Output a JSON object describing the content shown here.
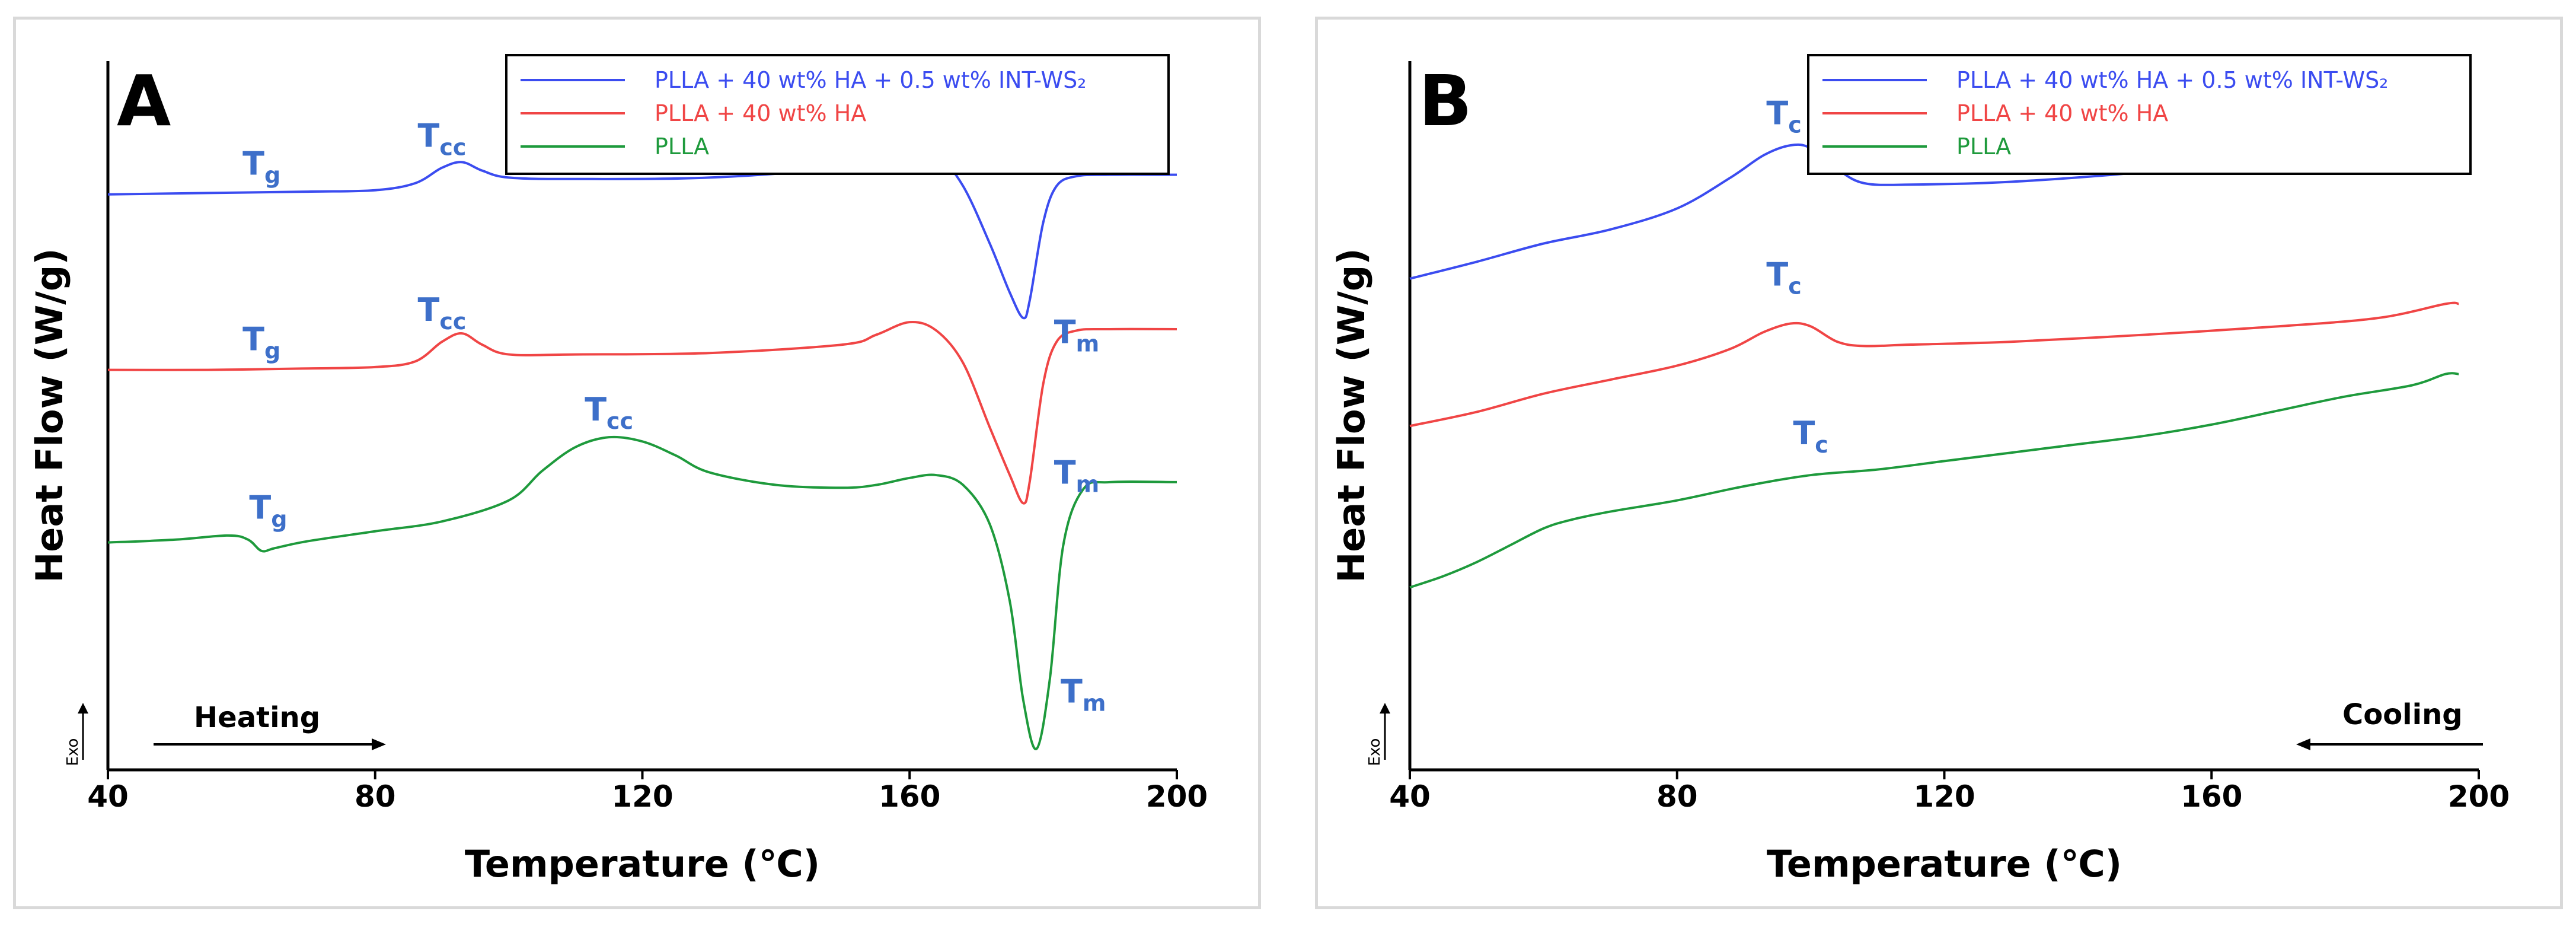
{
  "chart_data": [
    {
      "type": "line",
      "panel_label": "A",
      "xlabel": "Temperature (℃)",
      "ylabel": "Heat Flow (W/g)",
      "xlim": [
        40,
        200
      ],
      "x_ticks": [
        "40",
        "80",
        "120",
        "160",
        "200"
      ],
      "y_ticks": "none",
      "grid": false,
      "legend_position": "top-right",
      "exo_label": "Exo",
      "direction_label": "Heating",
      "direction": "right",
      "series": [
        {
          "name": "PLLA + 40 wt% HA + 0.5 wt% INT-WS₂",
          "color": "#3b4cf0",
          "x": [
            40,
            55,
            70,
            80,
            86,
            90,
            93,
            96,
            100,
            110,
            130,
            150,
            155,
            160,
            164,
            168,
            172,
            175,
            177,
            178,
            180,
            182,
            185,
            190,
            200
          ],
          "y": [
            0.8,
            0.81,
            0.82,
            0.83,
            0.88,
            0.99,
            1.03,
            0.97,
            0.92,
            0.91,
            0.92,
            0.99,
            1.07,
            1.14,
            1.09,
            0.86,
            0.45,
            0.1,
            -0.08,
            0.05,
            0.6,
            0.86,
            0.93,
            0.94,
            0.94
          ]
        },
        {
          "name": "PLLA + 40 wt% HA",
          "color": "#f04545",
          "x": [
            40,
            55,
            70,
            80,
            86,
            90,
            93,
            96,
            100,
            110,
            130,
            150,
            155,
            160,
            164,
            168,
            172,
            175,
            177,
            178,
            180,
            182,
            185,
            190,
            200
          ],
          "y": [
            -0.45,
            -0.45,
            -0.44,
            -0.43,
            -0.39,
            -0.25,
            -0.19,
            -0.27,
            -0.34,
            -0.34,
            -0.33,
            -0.27,
            -0.2,
            -0.11,
            -0.17,
            -0.4,
            -0.86,
            -1.2,
            -1.4,
            -1.24,
            -0.55,
            -0.25,
            -0.17,
            -0.16,
            -0.16
          ]
        },
        {
          "name": "PLLA",
          "color": "#1e9a3c",
          "x": [
            40,
            50,
            58,
            61,
            63,
            65,
            70,
            80,
            90,
            100,
            105,
            110,
            115,
            120,
            125,
            130,
            140,
            150,
            155,
            160,
            164,
            168,
            172,
            175,
            177,
            179,
            181,
            183,
            186,
            190,
            200
          ],
          "y": [
            -1.68,
            -1.66,
            -1.63,
            -1.66,
            -1.74,
            -1.72,
            -1.67,
            -1.6,
            -1.53,
            -1.38,
            -1.17,
            -1.0,
            -0.93,
            -0.96,
            -1.06,
            -1.18,
            -1.27,
            -1.29,
            -1.27,
            -1.22,
            -1.2,
            -1.27,
            -1.55,
            -2.1,
            -2.8,
            -3.15,
            -2.65,
            -1.7,
            -1.3,
            -1.25,
            -1.25
          ]
        }
      ],
      "annotations": [
        {
          "main": "T",
          "sub": "g",
          "x": 63,
          "y": 0.94
        },
        {
          "main": "T",
          "sub": "cc",
          "x": 90,
          "y": 1.14
        },
        {
          "main": "T",
          "sub": "m",
          "x": 185,
          "y": -0.26
        },
        {
          "main": "T",
          "sub": "g",
          "x": 63,
          "y": -0.31
        },
        {
          "main": "T",
          "sub": "cc",
          "x": 90,
          "y": -0.1
        },
        {
          "main": "T",
          "sub": "m",
          "x": 185,
          "y": -1.26
        },
        {
          "main": "T",
          "sub": "g",
          "x": 64,
          "y": -1.51
        },
        {
          "main": "T",
          "sub": "cc",
          "x": 115,
          "y": -0.81
        },
        {
          "main": "T",
          "sub": "m",
          "x": 186,
          "y": -2.82
        }
      ]
    },
    {
      "type": "line",
      "panel_label": "B",
      "xlabel": "Temperature (℃)",
      "ylabel": "Heat Flow (W/g)",
      "xlim": [
        40,
        200
      ],
      "x_ticks": [
        "40",
        "80",
        "120",
        "160",
        "200"
      ],
      "y_ticks": "none",
      "grid": false,
      "legend_position": "top-right",
      "exo_label": "Exo",
      "direction_label": "Cooling",
      "direction": "left",
      "series": [
        {
          "name": "PLLA + 40 wt% HA + 0.5 wt% INT-WS₂",
          "color": "#3b4cf0",
          "x": [
            40,
            50,
            60,
            70,
            80,
            88,
            93,
            97,
            100,
            104,
            108,
            115,
            130,
            150,
            170,
            185,
            195,
            197
          ],
          "y": [
            0.2,
            0.32,
            0.45,
            0.55,
            0.7,
            0.92,
            1.08,
            1.15,
            1.13,
            0.98,
            0.88,
            0.87,
            0.89,
            0.96,
            1.06,
            1.18,
            1.28,
            1.28
          ]
        },
        {
          "name": "PLLA + 40 wt% HA",
          "color": "#f04545",
          "x": [
            40,
            50,
            60,
            70,
            80,
            88,
            93,
            97,
            100,
            104,
            108,
            115,
            130,
            150,
            170,
            185,
            195,
            197
          ],
          "y": [
            -0.85,
            -0.75,
            -0.62,
            -0.52,
            -0.42,
            -0.3,
            -0.18,
            -0.12,
            -0.14,
            -0.25,
            -0.28,
            -0.27,
            -0.25,
            -0.2,
            -0.14,
            -0.08,
            0.02,
            0.02
          ]
        },
        {
          "name": "PLLA",
          "color": "#1e9a3c",
          "x": [
            40,
            45,
            50,
            55,
            60,
            64,
            70,
            80,
            90,
            100,
            110,
            120,
            130,
            140,
            150,
            160,
            170,
            180,
            190,
            195,
            197
          ],
          "y": [
            -2.0,
            -1.92,
            -1.82,
            -1.7,
            -1.58,
            -1.52,
            -1.46,
            -1.38,
            -1.28,
            -1.2,
            -1.16,
            -1.1,
            -1.04,
            -0.98,
            -0.92,
            -0.84,
            -0.74,
            -0.64,
            -0.56,
            -0.48,
            -0.48
          ]
        }
      ],
      "annotations": [
        {
          "main": "T",
          "sub": "c",
          "x": 96,
          "y": 1.3
        },
        {
          "main": "T",
          "sub": "c",
          "x": 96,
          "y": 0.15
        },
        {
          "main": "T",
          "sub": "c",
          "x": 100,
          "y": -0.98
        }
      ]
    }
  ]
}
